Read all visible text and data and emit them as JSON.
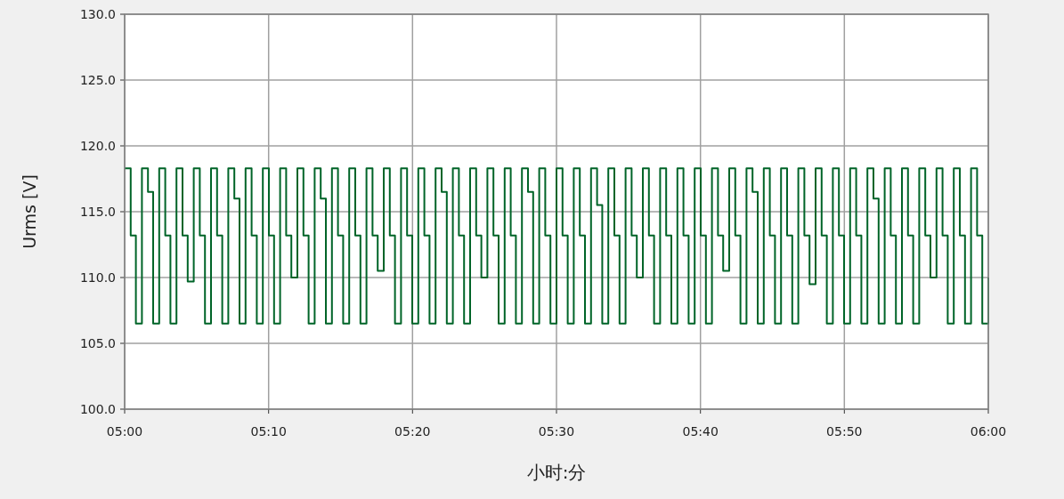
{
  "chart_data": {
    "type": "step",
    "xlabel": "小时:分",
    "ylabel": "Urms [V]",
    "xlim": [
      5,
      6
    ],
    "ylim": [
      100,
      130
    ],
    "xticks": [
      {
        "value": 5,
        "label": "05:00"
      },
      {
        "value": 5.1667,
        "label": "05:10"
      },
      {
        "value": 5.3333,
        "label": "05:20"
      },
      {
        "value": 5.5,
        "label": "05:30"
      },
      {
        "value": 5.6667,
        "label": "05:40"
      },
      {
        "value": 5.8333,
        "label": "05:50"
      },
      {
        "value": 6,
        "label": "06:00"
      }
    ],
    "yticks": [
      {
        "value": 100,
        "label": "100.0"
      },
      {
        "value": 105,
        "label": "105.0"
      },
      {
        "value": 110,
        "label": "110.0"
      },
      {
        "value": 115,
        "label": "115.0"
      },
      {
        "value": 120,
        "label": "120.0"
      },
      {
        "value": 125,
        "label": "125.0"
      },
      {
        "value": 130,
        "label": "130.0"
      }
    ],
    "grid": true,
    "marker": "none",
    "line_style": "solid",
    "series": [
      {
        "color": "#006428",
        "x": [
          5,
          5.007,
          5.013,
          5.02,
          5.027,
          5.033,
          5.04,
          5.047,
          5.053,
          5.06,
          5.067,
          5.073,
          5.08,
          5.087,
          5.093,
          5.1,
          5.107,
          5.113,
          5.12,
          5.127,
          5.133,
          5.14,
          5.147,
          5.153,
          5.16,
          5.167,
          5.173,
          5.18,
          5.187,
          5.193,
          5.2,
          5.207,
          5.213,
          5.22,
          5.227,
          5.233,
          5.24,
          5.247,
          5.253,
          5.26,
          5.267,
          5.273,
          5.28,
          5.287,
          5.293,
          5.3,
          5.307,
          5.313,
          5.32,
          5.327,
          5.333,
          5.34,
          5.347,
          5.353,
          5.36,
          5.367,
          5.373,
          5.38,
          5.387,
          5.393,
          5.4,
          5.407,
          5.413,
          5.42,
          5.427,
          5.433,
          5.44,
          5.447,
          5.453,
          5.46,
          5.467,
          5.473,
          5.48,
          5.487,
          5.493,
          5.5,
          5.507,
          5.513,
          5.52,
          5.527,
          5.533,
          5.54,
          5.547,
          5.553,
          5.56,
          5.567,
          5.573,
          5.58,
          5.587,
          5.593,
          5.6,
          5.607,
          5.613,
          5.62,
          5.627,
          5.633,
          5.64,
          5.647,
          5.653,
          5.66,
          5.667,
          5.673,
          5.68,
          5.687,
          5.693,
          5.7,
          5.707,
          5.713,
          5.72,
          5.727,
          5.733,
          5.74,
          5.747,
          5.753,
          5.76,
          5.767,
          5.773,
          5.78,
          5.787,
          5.793,
          5.8,
          5.807,
          5.813,
          5.82,
          5.827,
          5.833,
          5.84,
          5.847,
          5.853,
          5.86,
          5.867,
          5.873,
          5.88,
          5.887,
          5.893,
          5.9,
          5.907,
          5.913,
          5.92,
          5.927,
          5.933,
          5.94,
          5.947,
          5.953,
          5.96,
          5.967,
          5.973,
          5.98,
          5.987,
          5.993,
          6
        ],
        "values": [
          118.3,
          113.2,
          106.5,
          118.3,
          116.5,
          106.5,
          118.3,
          113.2,
          106.5,
          118.3,
          113.2,
          109.7,
          118.3,
          113.2,
          106.5,
          118.3,
          113.2,
          106.5,
          118.3,
          116,
          106.5,
          118.3,
          113.2,
          106.5,
          118.3,
          113.2,
          106.5,
          118.3,
          113.2,
          110,
          118.3,
          113.2,
          106.5,
          118.3,
          116,
          106.5,
          118.3,
          113.2,
          106.5,
          118.3,
          113.2,
          106.5,
          118.3,
          113.2,
          110.5,
          118.3,
          113.2,
          106.5,
          118.3,
          113.2,
          106.5,
          118.3,
          113.2,
          106.5,
          118.3,
          116.5,
          106.5,
          118.3,
          113.2,
          106.5,
          118.3,
          113.2,
          110,
          118.3,
          113.2,
          106.5,
          118.3,
          113.2,
          106.5,
          118.3,
          116.5,
          106.5,
          118.3,
          113.2,
          106.5,
          118.3,
          113.2,
          106.5,
          118.3,
          113.2,
          106.5,
          118.3,
          115.5,
          106.5,
          118.3,
          113.2,
          106.5,
          118.3,
          113.2,
          110,
          118.3,
          113.2,
          106.5,
          118.3,
          113.2,
          106.5,
          118.3,
          113.2,
          106.5,
          118.3,
          113.2,
          106.5,
          118.3,
          113.2,
          110.5,
          118.3,
          113.2,
          106.5,
          118.3,
          116.5,
          106.5,
          118.3,
          113.2,
          106.5,
          118.3,
          113.2,
          106.5,
          118.3,
          113.2,
          109.5,
          118.3,
          113.2,
          106.5,
          118.3,
          113.2,
          106.5,
          118.3,
          113.2,
          106.5,
          118.3,
          116,
          106.5,
          118.3,
          113.2,
          106.5,
          118.3,
          113.2,
          106.5,
          118.3,
          113.2,
          110,
          118.3,
          113.2,
          106.5,
          118.3,
          113.2,
          106.5,
          118.3,
          113.2,
          106.5,
          110
        ]
      }
    ]
  }
}
